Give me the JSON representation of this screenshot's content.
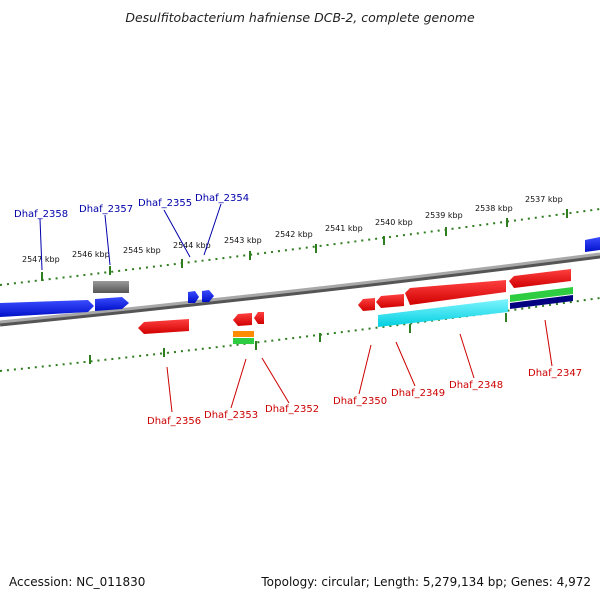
{
  "title": "Desulfitobacterium hafniense DCB-2, complete genome",
  "footer": {
    "accession": "Accession: NC_011830",
    "topology": "Topology: circular; Length: 5,279,134 bp; Genes: 4,972"
  },
  "colors": {
    "backbone": "#808080",
    "tick": "#2e7d1e",
    "top_label": "#0000aa",
    "bottom_label": "#cc0000"
  },
  "scale_labels": [
    "2547 kbp",
    "2546 kbp",
    "2545 kbp",
    "2544 kbp",
    "2543 kbp",
    "2542 kbp",
    "2541 kbp",
    "2540 kbp",
    "2539 kbp",
    "2538 kbp",
    "2537 kbp"
  ],
  "top_genes": [
    "Dhaf_2358",
    "Dhaf_2357",
    "Dhaf_2355",
    "Dhaf_2354"
  ],
  "bottom_genes": [
    "Dhaf_2356",
    "Dhaf_2353",
    "Dhaf_2352",
    "Dhaf_2350",
    "Dhaf_2349",
    "Dhaf_2348",
    "Dhaf_2347"
  ]
}
